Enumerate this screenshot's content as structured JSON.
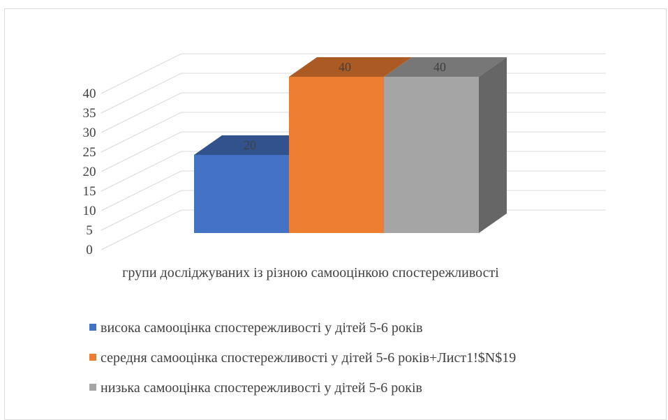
{
  "chart_data": {
    "type": "bar",
    "three_d": true,
    "xlabel": "групи досліджуваних із різною самооцінкою спостережливості",
    "ylim": [
      0,
      40
    ],
    "yticks": [
      0,
      5,
      10,
      15,
      20,
      25,
      30,
      35,
      40
    ],
    "grid": true,
    "legend_position": "bottom",
    "series": [
      {
        "name": "висока самооцінка спостережливості у дітей 5-6 років",
        "values": [
          20
        ],
        "label": "20",
        "color": "#4472c4"
      },
      {
        "name": "середня самооцінка спостережливості у дітей 5-6 років+Лист1!$N$19",
        "values": [
          40
        ],
        "label": "40",
        "color": "#ed7d31"
      },
      {
        "name": "низька самооцінка спостережливості у дітей 5-6 років",
        "values": [
          40
        ],
        "label": "40",
        "color": "#a5a5a5"
      }
    ]
  }
}
